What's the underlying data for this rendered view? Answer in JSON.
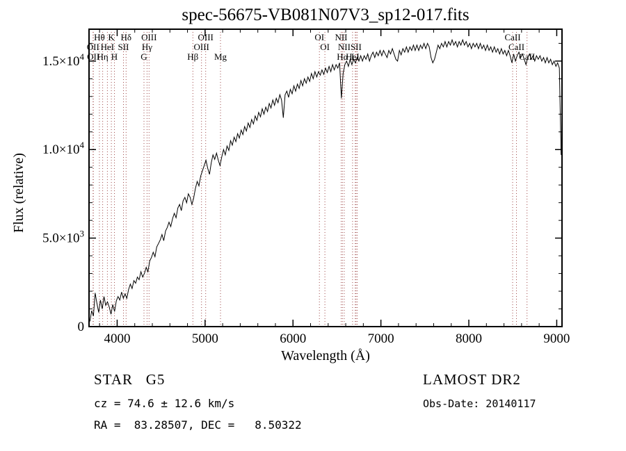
{
  "title": "spec-56675-VB081N07V3_sp12-017.fits",
  "footer": {
    "class_label": "STAR   G5",
    "survey": "LAMOST DR2",
    "cz": "cz = 74.6 ± 12.6 km/s",
    "obs_date": "Obs-Date: 20140117",
    "coords": "RA =  83.28507, DEC =   8.50322"
  },
  "chart_data": {
    "type": "line",
    "title": "spec-56675-VB081N07V3_sp12-017.fits",
    "xlabel": "Wavelength (Å)",
    "ylabel": "Flux (relative)",
    "xlim": [
      3680,
      9060
    ],
    "ylim": [
      0,
      16800
    ],
    "grid": false,
    "legend": "none",
    "line_color": "#000000",
    "marker_color": "#9e4848",
    "x_ticks_major": [
      4000,
      5000,
      6000,
      7000,
      8000,
      9000
    ],
    "x_tick_labels": [
      "4000",
      "5000",
      "6000",
      "7000",
      "8000",
      "9000"
    ],
    "x_minor_step": 200,
    "y_ticks_major": [
      0,
      5000,
      10000,
      15000
    ],
    "y_tick_labels": [
      {
        "t": "0"
      },
      {
        "t": "5.0×10",
        "e": "3"
      },
      {
        "t": "1.0×10",
        "e": "4"
      },
      {
        "t": "1.5×10",
        "e": "4"
      }
    ],
    "y_minor_step": 1000,
    "series": [
      {
        "name": "flux",
        "x_start": 3690,
        "x_step": 20,
        "values": [
          300,
          900,
          600,
          1900,
          1300,
          800,
          1500,
          1000,
          1700,
          1200,
          1400,
          1100,
          700,
          1250,
          850,
          1450,
          1700,
          1500,
          1950,
          1600,
          1850,
          1600,
          2100,
          2400,
          2150,
          2600,
          2450,
          2800,
          2650,
          3100,
          2800,
          3000,
          3350,
          3100,
          3700,
          3900,
          4200,
          3950,
          4500,
          4700,
          4900,
          5200,
          4850,
          5400,
          5600,
          5900,
          5650,
          6100,
          6400,
          6150,
          6700,
          6900,
          6550,
          7100,
          7300,
          7000,
          7500,
          7300,
          6900,
          7250,
          7800,
          8200,
          7950,
          8500,
          8800,
          9100,
          9400,
          8950,
          8600,
          9250,
          9700,
          9450,
          9800,
          9400,
          9100,
          9600,
          10000,
          9700,
          10200,
          9950,
          10500,
          10250,
          10700,
          10450,
          10900,
          10650,
          11100,
          10850,
          11300,
          11050,
          11500,
          11250,
          11700,
          11450,
          11900,
          11650,
          12100,
          11850,
          12300,
          12000,
          12400,
          12150,
          12600,
          12350,
          12800,
          12500,
          12900,
          12650,
          13100,
          12800,
          11800,
          13100,
          13300,
          12950,
          13400,
          13150,
          13600,
          13300,
          13700,
          13450,
          13900,
          13600,
          14000,
          13750,
          14100,
          13850,
          14300,
          14000,
          14400,
          14100,
          14400,
          14200,
          14500,
          14250,
          14600,
          14350,
          14700,
          14400,
          14800,
          14500,
          14800,
          14600,
          14900,
          12900,
          14300,
          14800,
          15000,
          14700,
          15100,
          14800,
          15100,
          14900,
          15200,
          15000,
          15300,
          15000,
          15300,
          15100,
          15400,
          15000,
          15300,
          15500,
          15200,
          15500,
          15300,
          15600,
          15300,
          15600,
          15400,
          15200,
          15600,
          15400,
          15700,
          15400,
          15100,
          15000,
          15600,
          15350,
          15700,
          15500,
          15800,
          15500,
          15800,
          15600,
          15900,
          15600,
          15900,
          15600,
          15900,
          15700,
          16000,
          15700,
          16000,
          15800,
          15200,
          14900,
          15100,
          15500,
          15900,
          15700,
          16000,
          15800,
          16100,
          15800,
          16100,
          15900,
          16200,
          15900,
          16100,
          15800,
          16100,
          15900,
          16200,
          15900,
          16100,
          15800,
          16000,
          15700,
          16000,
          15800,
          16000,
          15700,
          16000,
          15700,
          15900,
          15600,
          15900,
          15600,
          15800,
          15500,
          15800,
          15500,
          15700,
          15400,
          15700,
          15400,
          15600,
          15300,
          15600,
          15300,
          14900,
          15400,
          15000,
          15300,
          15500,
          15200,
          15400,
          15100,
          14800,
          15200,
          15400,
          15100,
          15300,
          15000,
          15300,
          15100,
          15300,
          15000,
          15200,
          14900,
          15200,
          14900,
          15100,
          14800,
          15000,
          14700,
          14900,
          14600,
          9700
        ]
      }
    ],
    "spectral_lines": [
      {
        "wl": 3726,
        "label": "OII",
        "row": 2
      },
      {
        "wl": 3729,
        "label": "OII",
        "row": 3
      },
      {
        "wl": 3798,
        "label": "Hθ",
        "row": 1
      },
      {
        "wl": 3835,
        "label": "Hη",
        "row": 3
      },
      {
        "wl": 3889,
        "label": "HeI",
        "row": 2
      },
      {
        "wl": 3934,
        "label": "K",
        "row": 1
      },
      {
        "wl": 3969,
        "label": "H",
        "row": 3
      },
      {
        "wl": 4072,
        "label": "SII",
        "row": 2
      },
      {
        "wl": 4102,
        "label": "Hδ",
        "row": 1
      },
      {
        "wl": 4305,
        "label": "G",
        "row": 3
      },
      {
        "wl": 4340,
        "label": "Hγ",
        "row": 2
      },
      {
        "wl": 4363,
        "label": "OIII",
        "row": 1
      },
      {
        "wl": 4861,
        "label": "Hβ",
        "row": 3
      },
      {
        "wl": 4959,
        "label": "OIII",
        "row": 2
      },
      {
        "wl": 5007,
        "label": "OIII",
        "row": 1
      },
      {
        "wl": 5175,
        "label": "Mg",
        "row": 3
      },
      {
        "wl": 6300,
        "label": "OI",
        "row": 1
      },
      {
        "wl": 6363,
        "label": "OI",
        "row": 2
      },
      {
        "wl": 6548,
        "label": "NII",
        "row": 1
      },
      {
        "wl": 6563,
        "label": "Hα",
        "row": 3
      },
      {
        "wl": 6583,
        "label": "NII",
        "row": 2
      },
      {
        "wl": 6678,
        "label": "HeI",
        "row": 3
      },
      {
        "wl": 6708,
        "label": "Li",
        "row": 3
      },
      {
        "wl": 6717,
        "label": "SII",
        "row": 2
      },
      {
        "wl": 6731,
        "label": "",
        "row": 2
      },
      {
        "wl": 8498,
        "label": "CaII",
        "row": 1
      },
      {
        "wl": 8542,
        "label": "CaII",
        "row": 2
      },
      {
        "wl": 8662,
        "label": "CaII",
        "row": 3
      }
    ]
  }
}
